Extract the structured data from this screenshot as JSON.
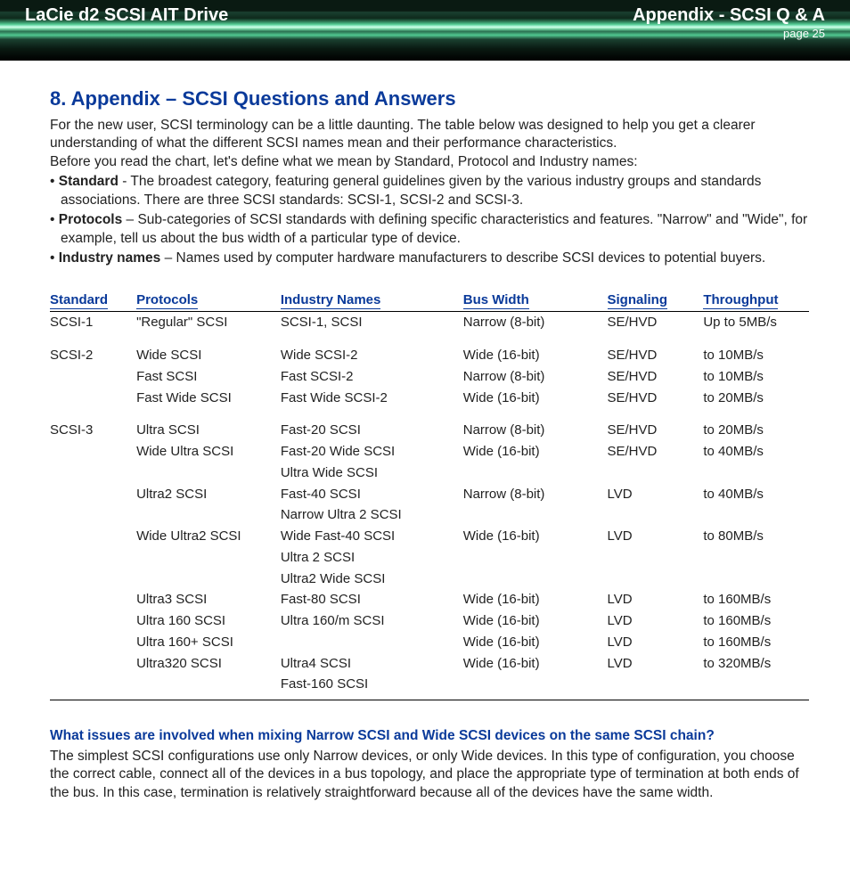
{
  "header": {
    "product": "LaCie d2 SCSI AIT Drive",
    "section": "Appendix  - SCSI Q & A",
    "page": "page 25"
  },
  "title": "8. Appendix – SCSI Questions and Answers",
  "intro": [
    "For the new user, SCSI terminology can be a little daunting. The table below was designed to help you get a clearer understanding of what the different SCSI names mean and their performance characteristics.",
    "Before you read the chart, let's define what we mean by Standard, Protocol and Industry names:"
  ],
  "bullets": [
    {
      "label": "Standard",
      "text": " - The broadest category, featuring general guidelines given by the various industry groups and standards associations. There are three SCSI standards: SCSI-1, SCSI-2 and SCSI-3."
    },
    {
      "label": "Protocols",
      "text": " – Sub-categories of SCSI standards with defining specific characteristics and features. \"Narrow\" and \"Wide\", for example, tell us about the bus width of a particular type of device."
    },
    {
      "label": "Industry names",
      "text": " – Names used by computer hardware manufacturers to describe SCSI devices to potential buyers."
    }
  ],
  "table": {
    "columns": [
      "Standard",
      "Protocols",
      "Industry Names",
      "Bus Width",
      "Signaling",
      "Throughput"
    ],
    "col_widths": [
      "90px",
      "150px",
      "190px",
      "150px",
      "100px",
      "110px"
    ],
    "header_color": "#0a3a9a",
    "border_color": "#000000",
    "groups": [
      {
        "standard": "SCSI-1",
        "rows": [
          {
            "protocol": "\"Regular\" SCSI",
            "industry": [
              "SCSI-1, SCSI"
            ],
            "bus": "Narrow (8-bit)",
            "sig": "SE/HVD",
            "tp": "Up to 5MB/s"
          }
        ]
      },
      {
        "standard": "SCSI-2",
        "rows": [
          {
            "protocol": "Wide SCSI",
            "industry": [
              "Wide SCSI-2"
            ],
            "bus": "Wide (16-bit)",
            "sig": "SE/HVD",
            "tp": "to 10MB/s"
          },
          {
            "protocol": "Fast SCSI",
            "industry": [
              "Fast SCSI-2"
            ],
            "bus": "Narrow (8-bit)",
            "sig": "SE/HVD",
            "tp": "to 10MB/s"
          },
          {
            "protocol": "Fast Wide SCSI",
            "industry": [
              "Fast Wide SCSI-2"
            ],
            "bus": "Wide (16-bit)",
            "sig": "SE/HVD",
            "tp": "to 20MB/s"
          }
        ]
      },
      {
        "standard": "SCSI-3",
        "rows": [
          {
            "protocol": "Ultra SCSI",
            "industry": [
              "Fast-20 SCSI"
            ],
            "bus": "Narrow (8-bit)",
            "sig": "SE/HVD",
            "tp": "to 20MB/s"
          },
          {
            "protocol": "Wide Ultra SCSI",
            "industry": [
              "Fast-20 Wide SCSI",
              "Ultra Wide SCSI"
            ],
            "bus": "Wide (16-bit)",
            "sig": "SE/HVD",
            "tp": "to 40MB/s"
          },
          {
            "protocol": "Ultra2 SCSI",
            "industry": [
              "Fast-40 SCSI",
              "Narrow Ultra 2 SCSI"
            ],
            "bus": "Narrow (8-bit)",
            "sig": "LVD",
            "tp": "to 40MB/s"
          },
          {
            "protocol": "Wide Ultra2 SCSI",
            "industry": [
              "Wide Fast-40 SCSI",
              "Ultra 2 SCSI",
              "Ultra2 Wide SCSI"
            ],
            "bus": "Wide (16-bit)",
            "sig": "LVD",
            "tp": "to 80MB/s"
          },
          {
            "protocol": "Ultra3 SCSI",
            "industry": [
              "Fast-80 SCSI"
            ],
            "bus": "Wide (16-bit)",
            "sig": "LVD",
            "tp": "to 160MB/s"
          },
          {
            "protocol": "Ultra 160 SCSI",
            "industry": [
              "Ultra 160/m SCSI"
            ],
            "bus": "Wide (16-bit)",
            "sig": "LVD",
            "tp": "to 160MB/s"
          },
          {
            "protocol": "Ultra 160+ SCSI",
            "industry": [
              ""
            ],
            "bus": "Wide (16-bit)",
            "sig": "LVD",
            "tp": "to 160MB/s"
          },
          {
            "protocol": "Ultra320 SCSI",
            "industry": [
              "Ultra4 SCSI",
              "Fast-160 SCSI"
            ],
            "bus": "Wide (16-bit)",
            "sig": "LVD",
            "tp": "to 320MB/s"
          }
        ]
      }
    ]
  },
  "qa": {
    "question": "What issues are involved when mixing Narrow SCSI and Wide SCSI devices on the same SCSI chain?",
    "answer": "The simplest SCSI configurations use only Narrow devices, or only Wide devices. In this type of configuration, you choose the correct cable, connect all of the devices in a bus topology, and place the appropriate type of termination at both ends of the bus. In this case, termination is relatively straightforward because all of the devices have the same width."
  },
  "colors": {
    "heading": "#0a3a9a",
    "body_text": "#222222",
    "background": "#ffffff"
  }
}
